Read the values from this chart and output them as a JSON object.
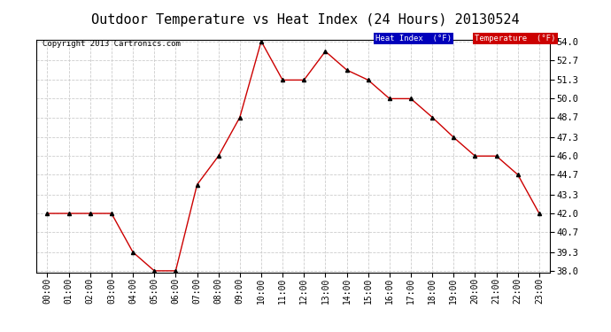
{
  "title": "Outdoor Temperature vs Heat Index (24 Hours) 20130524",
  "copyright": "Copyright 2013 Cartronics.com",
  "hours": [
    "00:00",
    "01:00",
    "02:00",
    "03:00",
    "04:00",
    "05:00",
    "06:00",
    "07:00",
    "08:00",
    "09:00",
    "10:00",
    "11:00",
    "12:00",
    "13:00",
    "14:00",
    "15:00",
    "16:00",
    "17:00",
    "18:00",
    "19:00",
    "20:00",
    "21:00",
    "22:00",
    "23:00"
  ],
  "temperature": [
    42.0,
    42.0,
    42.0,
    42.0,
    39.3,
    38.0,
    38.0,
    44.0,
    46.0,
    48.7,
    54.0,
    51.3,
    51.3,
    53.3,
    52.0,
    51.3,
    50.0,
    50.0,
    48.7,
    47.3,
    46.0,
    46.0,
    44.7,
    42.0
  ],
  "heat_index": [
    42.0,
    42.0,
    42.0,
    42.0,
    39.3,
    38.0,
    38.0,
    44.0,
    46.0,
    48.7,
    54.0,
    51.3,
    51.3,
    53.3,
    52.0,
    51.3,
    50.0,
    50.0,
    48.7,
    47.3,
    46.0,
    46.0,
    44.7,
    42.0
  ],
  "ylim": [
    38.0,
    54.0
  ],
  "yticks": [
    38.0,
    39.3,
    40.7,
    42.0,
    43.3,
    44.7,
    46.0,
    47.3,
    48.7,
    50.0,
    51.3,
    52.7,
    54.0
  ],
  "bg_color": "#ffffff",
  "plot_bg_color": "#ffffff",
  "grid_color": "#cccccc",
  "line_color": "#cc0000",
  "marker_color": "#000000",
  "title_fontsize": 11,
  "legend_heat_index_bg": "#0000bb",
  "legend_temp_bg": "#cc0000",
  "legend_text_color": "#ffffff",
  "legend_label_hi": "Heat Index  (°F)",
  "legend_label_temp": "Temperature  (°F)"
}
